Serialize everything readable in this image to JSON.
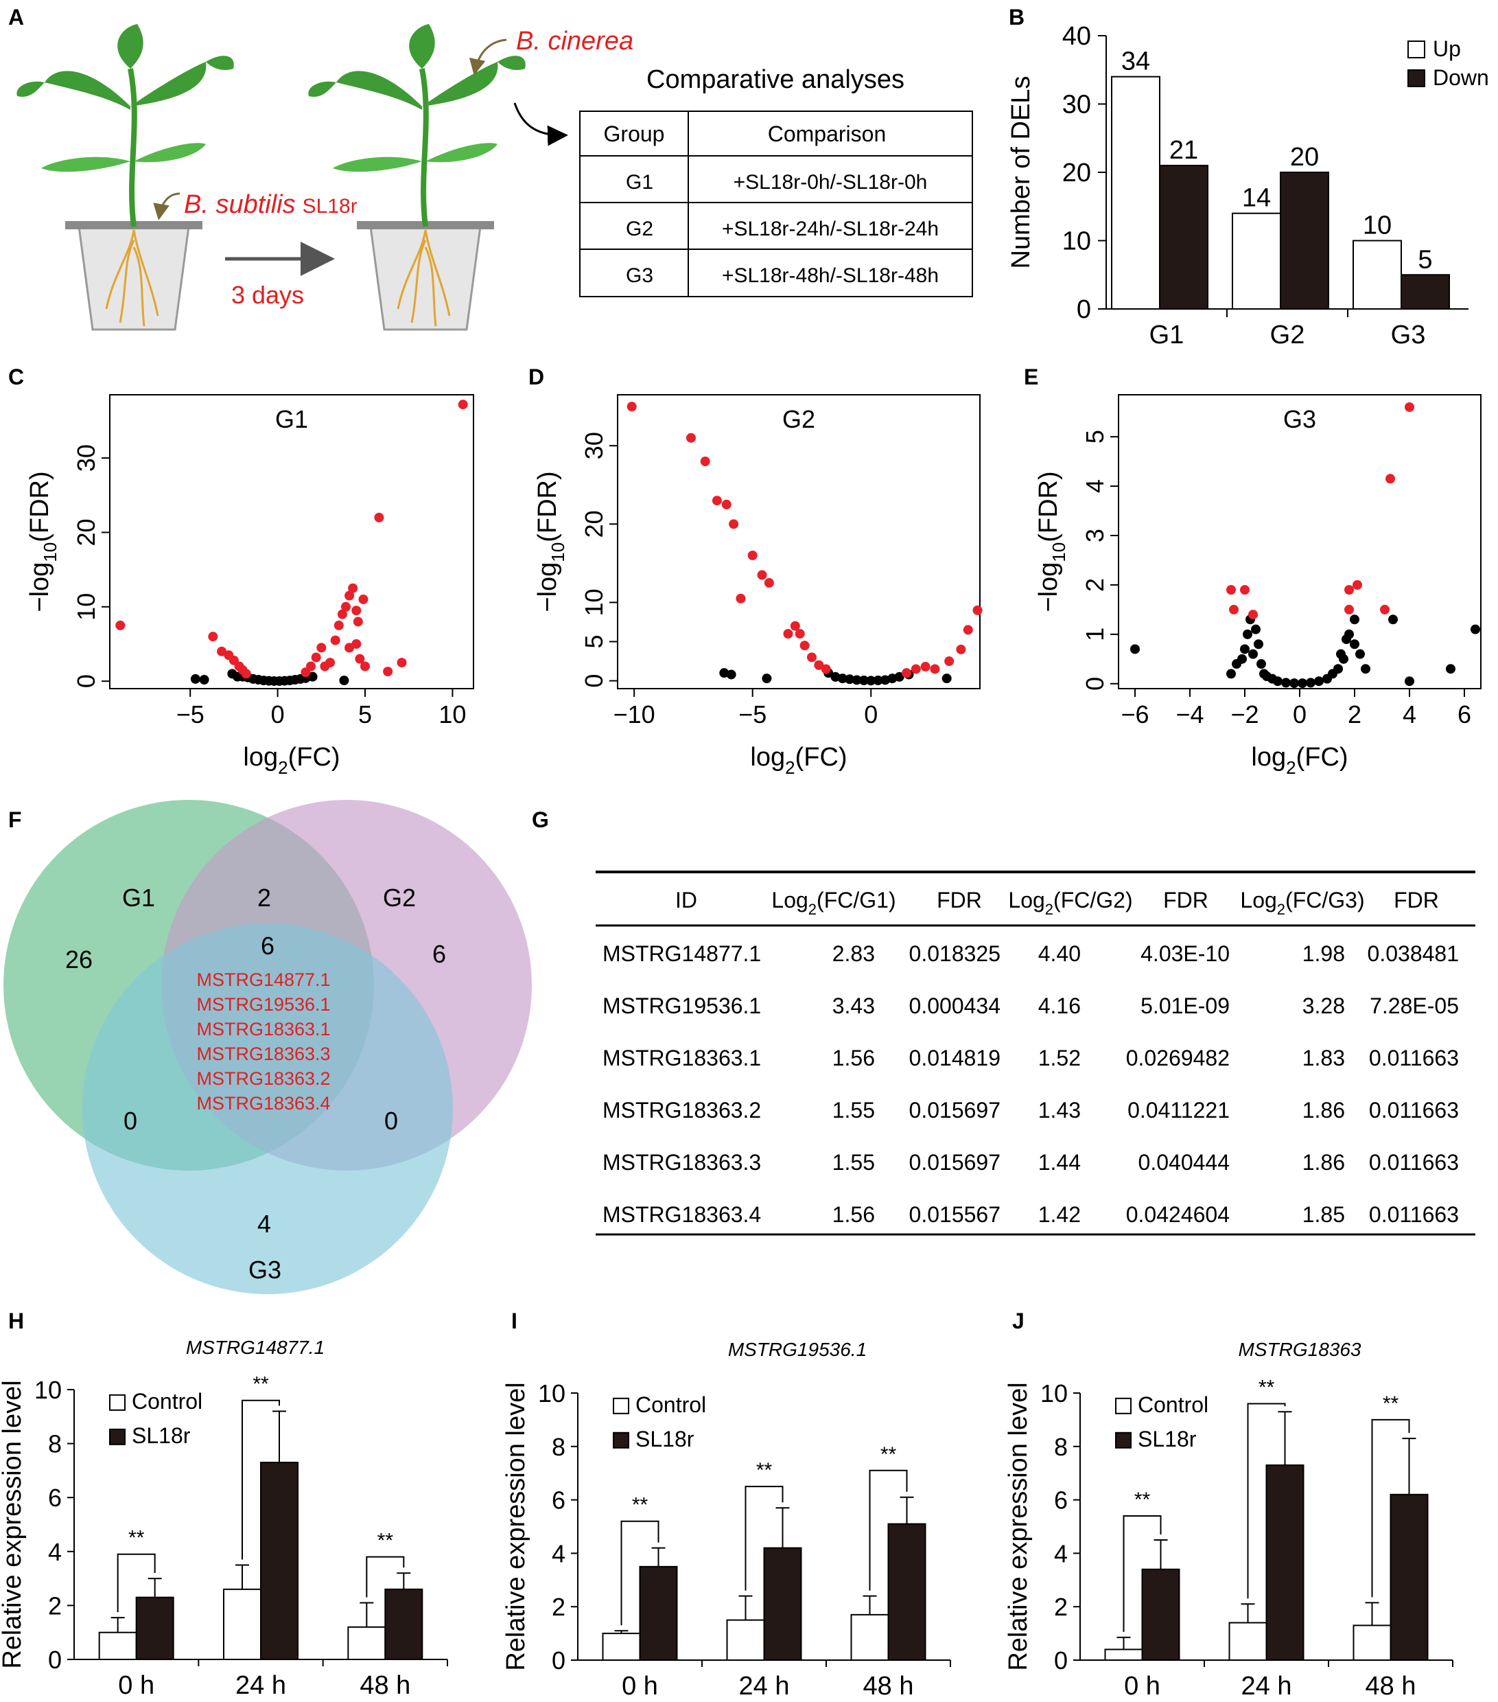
{
  "panel_letters": [
    "A",
    "B",
    "C",
    "D",
    "E",
    "F",
    "G",
    "H",
    "I",
    "J"
  ],
  "panelA": {
    "pathogen": "B. cinerea",
    "treat_italic": "B. subtilis",
    "treat_strain": "SL18r",
    "days": "3 days",
    "table_title": "Comparative analyses",
    "headers": [
      "Group",
      "Comparison"
    ],
    "rows": [
      [
        "G1",
        "+SL18r-0h/-SL18r-0h"
      ],
      [
        "G2",
        "+SL18r-24h/-SL18r-24h"
      ],
      [
        "G3",
        "+SL18r-48h/-SL18r-48h"
      ]
    ]
  },
  "volcano_axes": {
    "x": "log",
    "x_sub": "2",
    "x_end": "(FC)",
    "y_pre": "−log",
    "y_sub": "10",
    "y_end": "(FDR)"
  },
  "h_title_i": "MSTRG14877.1",
  "i_title_i": "MSTRG19536.1",
  "j_title_i": "MSTRG18363",
  "chart_data": [
    {
      "id": "B",
      "type": "bar",
      "ylabel": "Number of DELs",
      "categories": [
        "G1",
        "G2",
        "G3"
      ],
      "series": [
        {
          "name": "Up",
          "color": "#ffffff",
          "values": [
            34,
            14,
            10
          ]
        },
        {
          "name": "Down",
          "color": "#231815",
          "values": [
            21,
            20,
            5
          ]
        }
      ],
      "ylim": [
        0,
        40
      ],
      "yticks": [
        0,
        10,
        20,
        30,
        40
      ],
      "legend": "top-right"
    },
    {
      "id": "C",
      "type": "scatter",
      "title": "G1",
      "xlim": [
        -9.6,
        11.2
      ],
      "ylim": [
        -1,
        38.5
      ],
      "xticks": [
        -5,
        0,
        5,
        10
      ],
      "yticks": [
        0,
        10,
        20,
        30
      ],
      "sig_points": [
        [
          -9.0,
          7.5
        ],
        [
          -3.7,
          6.0
        ],
        [
          -3.2,
          4.0
        ],
        [
          -2.8,
          3.5
        ],
        [
          -2.5,
          2.8
        ],
        [
          -2.2,
          2.0
        ],
        [
          -2.0,
          1.5
        ],
        [
          -1.8,
          1.0
        ],
        [
          1.6,
          1.2
        ],
        [
          1.9,
          2.0
        ],
        [
          2.2,
          3.2
        ],
        [
          2.5,
          4.5
        ],
        [
          2.7,
          2.0
        ],
        [
          3.0,
          2.5
        ],
        [
          3.3,
          5.5
        ],
        [
          3.5,
          7.5
        ],
        [
          3.7,
          9.0
        ],
        [
          3.9,
          10.0
        ],
        [
          4.1,
          11.5
        ],
        [
          4.3,
          12.5
        ],
        [
          4.5,
          9.5
        ],
        [
          4.6,
          8.0
        ],
        [
          4.9,
          11.0
        ],
        [
          4.5,
          5.0
        ],
        [
          4.1,
          4.5
        ],
        [
          4.7,
          3.0
        ],
        [
          5.0,
          2.0
        ],
        [
          5.8,
          22.0
        ],
        [
          6.3,
          1.3
        ],
        [
          7.1,
          2.5
        ],
        [
          10.6,
          37.2
        ]
      ],
      "ns_points": [
        [
          -4.7,
          0.3
        ],
        [
          -4.2,
          0.2
        ],
        [
          -2.6,
          1.0
        ],
        [
          -2.3,
          0.6
        ],
        [
          -2.0,
          0.6
        ],
        [
          -1.7,
          0.5
        ],
        [
          -1.4,
          0.3
        ],
        [
          -1.1,
          0.2
        ],
        [
          -0.8,
          0.1
        ],
        [
          -0.5,
          0.05
        ],
        [
          -0.2,
          0.02
        ],
        [
          0.1,
          0.02
        ],
        [
          0.4,
          0.05
        ],
        [
          0.7,
          0.1
        ],
        [
          1.0,
          0.2
        ],
        [
          1.3,
          0.3
        ],
        [
          1.6,
          0.4
        ],
        [
          2.0,
          0.6
        ],
        [
          3.8,
          0.1
        ]
      ]
    },
    {
      "id": "D",
      "type": "scatter",
      "title": "G2",
      "xlim": [
        -10.7,
        4.6
      ],
      "ylim": [
        -1,
        36.5
      ],
      "xticks": [
        -10,
        -5,
        0
      ],
      "yticks": [
        0,
        5,
        10,
        20,
        30
      ],
      "sig_points": [
        [
          -10.1,
          35.0
        ],
        [
          -7.6,
          31.0
        ],
        [
          -7.0,
          28.0
        ],
        [
          -6.5,
          23.0
        ],
        [
          -6.1,
          22.5
        ],
        [
          -5.8,
          20.0
        ],
        [
          -5.0,
          16.0
        ],
        [
          -4.6,
          13.5
        ],
        [
          -4.3,
          12.5
        ],
        [
          -5.5,
          10.5
        ],
        [
          -3.2,
          7.0
        ],
        [
          -3.0,
          6.0
        ],
        [
          -3.5,
          6.0
        ],
        [
          -2.8,
          4.5
        ],
        [
          -2.5,
          3.0
        ],
        [
          -2.2,
          2.0
        ],
        [
          -1.9,
          1.5
        ],
        [
          1.5,
          1.0
        ],
        [
          1.9,
          1.5
        ],
        [
          2.3,
          1.8
        ],
        [
          2.7,
          1.5
        ],
        [
          3.3,
          2.5
        ],
        [
          3.8,
          4.0
        ],
        [
          4.1,
          6.5
        ],
        [
          4.5,
          9.0
        ]
      ],
      "ns_points": [
        [
          -6.2,
          1.0
        ],
        [
          -5.9,
          0.8
        ],
        [
          -4.4,
          0.3
        ],
        [
          -1.8,
          1.0
        ],
        [
          -1.5,
          0.5
        ],
        [
          -1.2,
          0.3
        ],
        [
          -0.9,
          0.2
        ],
        [
          -0.6,
          0.1
        ],
        [
          -0.3,
          0.05
        ],
        [
          0.0,
          0.02
        ],
        [
          0.3,
          0.05
        ],
        [
          0.6,
          0.1
        ],
        [
          0.9,
          0.3
        ],
        [
          1.2,
          0.5
        ],
        [
          1.6,
          0.8
        ],
        [
          3.2,
          0.3
        ]
      ]
    },
    {
      "id": "E",
      "type": "scatter",
      "title": "G3",
      "xlim": [
        -6.6,
        6.6
      ],
      "ylim": [
        -0.1,
        5.85
      ],
      "xticks": [
        -6,
        -4,
        -2,
        0,
        2,
        4,
        6
      ],
      "yticks": [
        0,
        1,
        2,
        3,
        4,
        5
      ],
      "sig_points": [
        [
          -2.5,
          1.9
        ],
        [
          -2.4,
          1.5
        ],
        [
          -2.0,
          1.9
        ],
        [
          -1.7,
          1.4
        ],
        [
          1.8,
          1.9
        ],
        [
          2.1,
          2.0
        ],
        [
          1.8,
          1.5
        ],
        [
          3.1,
          1.5
        ],
        [
          3.3,
          4.15
        ],
        [
          4.0,
          5.6
        ]
      ],
      "ns_points": [
        [
          -6.0,
          0.7
        ],
        [
          -2.5,
          0.2
        ],
        [
          -2.3,
          0.4
        ],
        [
          -2.1,
          0.5
        ],
        [
          -2.0,
          0.7
        ],
        [
          -1.9,
          1.0
        ],
        [
          -1.8,
          1.3
        ],
        [
          -1.7,
          0.6
        ],
        [
          -1.6,
          1.1
        ],
        [
          -1.5,
          0.8
        ],
        [
          -1.4,
          0.4
        ],
        [
          -1.3,
          0.2
        ],
        [
          -1.2,
          0.15
        ],
        [
          -1.0,
          0.1
        ],
        [
          -0.8,
          0.05
        ],
        [
          -0.5,
          0.02
        ],
        [
          -0.2,
          0.01
        ],
        [
          0.1,
          0.01
        ],
        [
          0.4,
          0.02
        ],
        [
          0.7,
          0.05
        ],
        [
          1.0,
          0.1
        ],
        [
          1.2,
          0.2
        ],
        [
          1.4,
          0.3
        ],
        [
          1.5,
          0.6
        ],
        [
          1.6,
          0.5
        ],
        [
          1.7,
          0.9
        ],
        [
          1.8,
          1.0
        ],
        [
          2.0,
          0.8
        ],
        [
          2.2,
          0.6
        ],
        [
          2.4,
          0.3
        ],
        [
          2.0,
          1.3
        ],
        [
          3.4,
          1.3
        ],
        [
          4.0,
          0.05
        ],
        [
          5.5,
          0.3
        ],
        [
          6.4,
          1.1
        ]
      ]
    },
    {
      "id": "H",
      "type": "bar",
      "ylabel": "Relative expression level",
      "categories": [
        "0 h",
        "24 h",
        "48 h"
      ],
      "series": [
        {
          "name": "Control",
          "values": [
            1.0,
            2.6,
            1.2
          ],
          "err": [
            0.55,
            0.9,
            0.9
          ]
        },
        {
          "name": "SL18r",
          "values": [
            2.3,
            7.3,
            2.6
          ],
          "err": [
            0.7,
            1.9,
            0.6
          ]
        }
      ],
      "ylim": [
        0,
        10
      ],
      "yticks": [
        0,
        2,
        4,
        6,
        8,
        10
      ],
      "significance": [
        "**",
        "**",
        "**"
      ],
      "sig_y": [
        3.9,
        9.6,
        3.8
      ]
    },
    {
      "id": "I",
      "type": "bar",
      "ylabel": "Relative expression level",
      "categories": [
        "0 h",
        "24 h",
        "48 h"
      ],
      "series": [
        {
          "name": "Control",
          "values": [
            1.0,
            1.5,
            1.7
          ],
          "err": [
            0.1,
            0.9,
            0.7
          ]
        },
        {
          "name": "SL18r",
          "values": [
            3.5,
            4.2,
            5.1
          ],
          "err": [
            0.7,
            1.5,
            1.0
          ]
        }
      ],
      "ylim": [
        0,
        10
      ],
      "yticks": [
        0,
        2,
        4,
        6,
        8,
        10
      ],
      "significance": [
        "**",
        "**",
        "**"
      ],
      "sig_y": [
        5.2,
        6.5,
        7.1
      ]
    },
    {
      "id": "J",
      "type": "bar",
      "ylabel": "Relative expression level",
      "categories": [
        "0 h",
        "24 h",
        "48 h"
      ],
      "series": [
        {
          "name": "Control",
          "values": [
            0.4,
            1.4,
            1.3
          ],
          "err": [
            0.45,
            0.7,
            0.85
          ]
        },
        {
          "name": "SL18r",
          "values": [
            3.4,
            7.3,
            6.2
          ],
          "err": [
            1.1,
            2.0,
            2.1
          ]
        }
      ],
      "ylim": [
        0,
        10
      ],
      "yticks": [
        0,
        2,
        4,
        6,
        8,
        10
      ],
      "significance": [
        "**",
        "**",
        "**"
      ],
      "sig_y": [
        5.4,
        9.6,
        9.0
      ]
    }
  ],
  "venn": {
    "sets": [
      "G1",
      "G2",
      "G3"
    ],
    "counts": {
      "g1_only": "26",
      "g2_only": "6",
      "g3_only": "4",
      "g1_g2": "2",
      "g1_g3": "0",
      "g2_g3": "0",
      "all": "6"
    },
    "genes": [
      "MSTRG14877.1",
      "MSTRG19536.1",
      "MSTRG18363.1",
      "MSTRG18363.3",
      "MSTRG18363.2",
      "MSTRG18363.4"
    ],
    "colors": {
      "g1": "#58b983",
      "g2": "#c49ac6",
      "g3": "#80c7d8"
    }
  },
  "tableG": {
    "headers": [
      "ID",
      "Log|2|(FC/G1)",
      "FDR",
      "Log|2|(FC/G2)",
      "FDR",
      "Log|2|(FC/G3)",
      "FDR"
    ],
    "rows": [
      [
        "MSTRG14877.1",
        "2.83",
        "0.018325",
        "4.40",
        "4.03E-10",
        "1.98",
        "0.038481"
      ],
      [
        "MSTRG19536.1",
        "3.43",
        "0.000434",
        "4.16",
        "5.01E-09",
        "3.28",
        "7.28E-05"
      ],
      [
        "MSTRG18363.1",
        "1.56",
        "0.014819",
        "1.52",
        "0.0269482",
        "1.83",
        "0.011663"
      ],
      [
        "MSTRG18363.2",
        "1.55",
        "0.015697",
        "1.43",
        "0.0411221",
        "1.86",
        "0.011663"
      ],
      [
        "MSTRG18363.3",
        "1.55",
        "0.015697",
        "1.44",
        "0.040444",
        "1.86",
        "0.011663"
      ],
      [
        "MSTRG18363.4",
        "1.56",
        "0.015567",
        "1.42",
        "0.0424604",
        "1.85",
        "0.011663"
      ]
    ]
  }
}
